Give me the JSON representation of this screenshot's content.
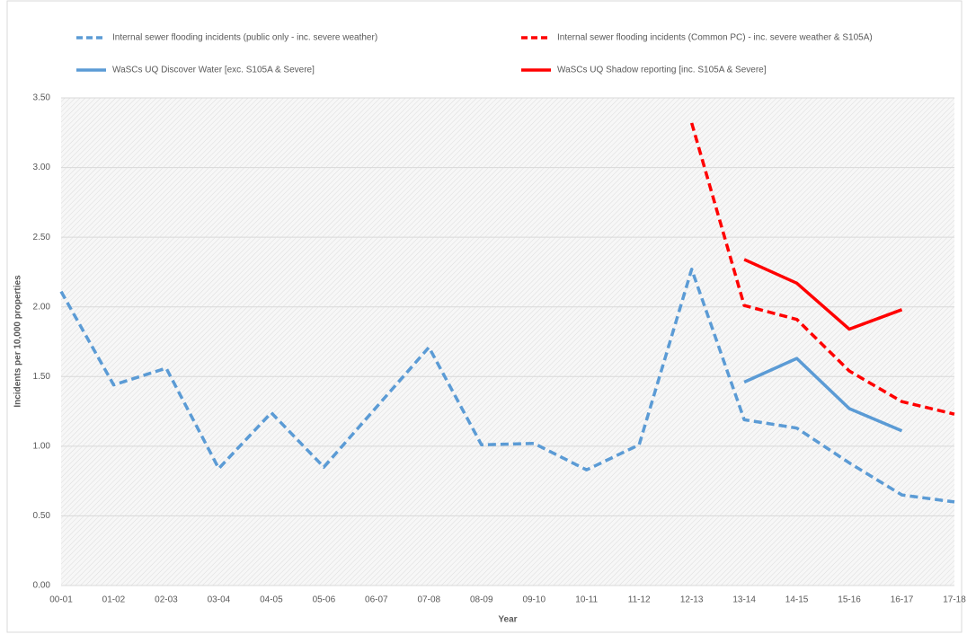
{
  "chart_data": {
    "type": "line",
    "x_label": "Year",
    "y_label": "Incidents per 10,000 properties",
    "categories": [
      "00-01",
      "01-02",
      "02-03",
      "03-04",
      "04-05",
      "05-06",
      "06-07",
      "07-08",
      "08-09",
      "09-10",
      "10-11",
      "11-12",
      "12-13",
      "13-14",
      "14-15",
      "15-16",
      "16-17",
      "17-18"
    ],
    "series": [
      {
        "name": "Internal sewer flooding incidents (public only - inc. severe weather)",
        "color": "#5b9bd5",
        "dashed": true,
        "values": [
          2.11,
          1.44,
          1.56,
          0.84,
          1.24,
          0.85,
          1.28,
          1.71,
          1.01,
          1.02,
          0.83,
          1.01,
          2.27,
          1.19,
          1.13,
          0.88,
          0.65,
          0.6
        ]
      },
      {
        "name": "Internal sewer flooding incidents (Common PC) - inc. severe weather & S105A)",
        "color": "#ff0000",
        "dashed": true,
        "values": [
          null,
          null,
          null,
          null,
          null,
          null,
          null,
          null,
          null,
          null,
          null,
          null,
          3.32,
          2.01,
          1.91,
          1.54,
          1.32,
          1.23
        ]
      },
      {
        "name": "WaSCs UQ Discover Water [exc. S105A & Severe]",
        "color": "#5b9bd5",
        "dashed": false,
        "values": [
          null,
          null,
          null,
          null,
          null,
          null,
          null,
          null,
          null,
          null,
          null,
          null,
          null,
          1.46,
          1.63,
          1.27,
          1.11,
          null
        ]
      },
      {
        "name": "WaSCs UQ Shadow reporting [inc. S105A & Severe]",
        "color": "#ff0000",
        "dashed": false,
        "values": [
          null,
          null,
          null,
          null,
          null,
          null,
          null,
          null,
          null,
          null,
          null,
          null,
          null,
          2.34,
          2.17,
          1.84,
          1.98,
          null
        ]
      }
    ],
    "ylim": [
      0,
      3.5
    ],
    "yticks": [
      {
        "value": 0,
        "label": "0.00"
      },
      {
        "value": 0.5,
        "label": "0.50"
      },
      {
        "value": 1,
        "label": "1.00"
      },
      {
        "value": 1.5,
        "label": "1.50"
      },
      {
        "value": 2,
        "label": "2.00"
      },
      {
        "value": 2.5,
        "label": "2.50"
      },
      {
        "value": 3,
        "label": "3.00"
      },
      {
        "value": 3.5,
        "label": "3.50"
      }
    ],
    "grid": true
  }
}
